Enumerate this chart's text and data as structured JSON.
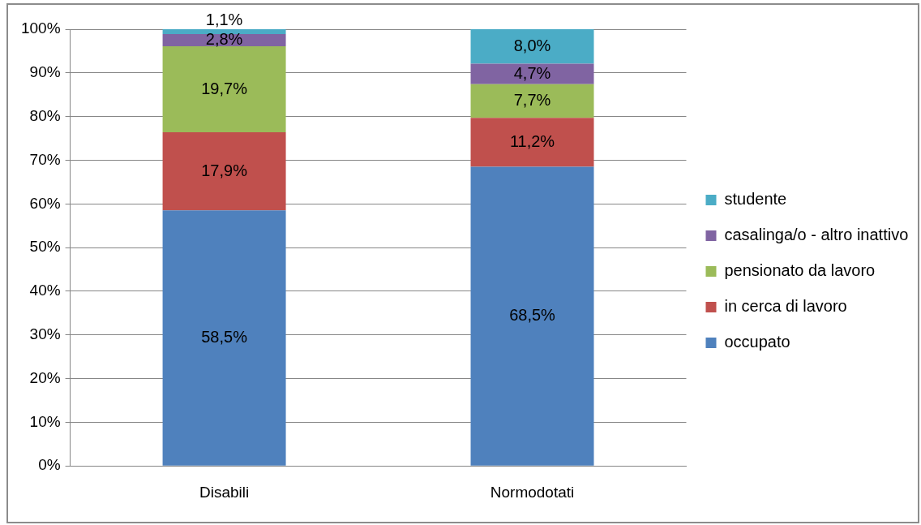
{
  "chart_data": {
    "type": "bar",
    "stacked": true,
    "categories": [
      "Disabili",
      "Normodotati"
    ],
    "series": [
      {
        "name": "occupato",
        "color": "#4f81bd",
        "values": [
          58.5,
          68.5
        ],
        "value_labels": [
          "58,5%",
          "68,5%"
        ]
      },
      {
        "name": "in cerca di lavoro",
        "color": "#c0504d",
        "values": [
          17.9,
          11.2
        ],
        "value_labels": [
          "17,9%",
          "11,2%"
        ]
      },
      {
        "name": "pensionato da lavoro",
        "color": "#9bbb59",
        "values": [
          19.7,
          7.7
        ],
        "value_labels": [
          "19,7%",
          "7,7%"
        ]
      },
      {
        "name": "casalinga/o - altro inattivo",
        "color": "#8064a2",
        "values": [
          2.8,
          4.7
        ],
        "value_labels": [
          "2,8%",
          "4,7%"
        ]
      },
      {
        "name": "studente",
        "color": "#4bacc6",
        "values": [
          1.1,
          8.0
        ],
        "value_labels": [
          "1,1%",
          "8,0%"
        ]
      }
    ],
    "ylim": [
      0,
      100
    ],
    "yticks": [
      {
        "value": 0,
        "label": "0%"
      },
      {
        "value": 10,
        "label": "10%"
      },
      {
        "value": 20,
        "label": "20%"
      },
      {
        "value": 30,
        "label": "30%"
      },
      {
        "value": 40,
        "label": "40%"
      },
      {
        "value": 50,
        "label": "50%"
      },
      {
        "value": 60,
        "label": "60%"
      },
      {
        "value": 70,
        "label": "70%"
      },
      {
        "value": 80,
        "label": "80%"
      },
      {
        "value": 90,
        "label": "90%"
      },
      {
        "value": 100,
        "label": "100%"
      }
    ],
    "grid": "y",
    "legend": "right"
  }
}
